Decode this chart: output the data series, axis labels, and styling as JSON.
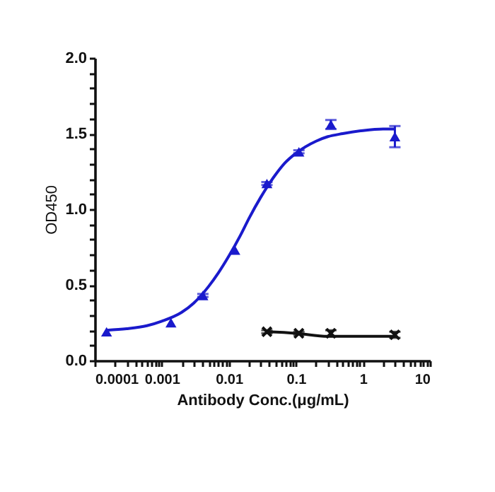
{
  "chart_data": {
    "type": "scatter",
    "xlabel": "Antibody Conc.(μg/mL)",
    "ylabel": "OD450",
    "log": "x",
    "grid": false,
    "xlim": [
      0.0001,
      10
    ],
    "ylim": [
      0,
      2.0
    ],
    "xticks": [
      0.0001,
      0.001,
      0.01,
      0.1,
      1,
      10,
      {
        "value": 0.0002,
        "label": null
      },
      {
        "value": 0.0003,
        "label": null
      },
      {
        "value": 0.0004,
        "label": null
      },
      {
        "value": 0.0005,
        "label": null
      },
      {
        "value": 0.0006,
        "label": null
      },
      {
        "value": 0.0007,
        "label": null
      },
      {
        "value": 0.0008,
        "label": null
      },
      {
        "value": 0.0009,
        "label": null
      },
      {
        "value": 0.002,
        "label": null
      },
      {
        "value": 0.003,
        "label": null
      },
      {
        "value": 0.004,
        "label": null
      },
      {
        "value": 0.005,
        "label": null
      },
      {
        "value": 0.006,
        "label": null
      },
      {
        "value": 0.007,
        "label": null
      },
      {
        "value": 0.008,
        "label": null
      },
      {
        "value": 0.009,
        "label": null
      },
      {
        "value": 0.02,
        "label": null
      },
      {
        "value": 0.03,
        "label": null
      },
      {
        "value": 0.04,
        "label": null
      },
      {
        "value": 0.05,
        "label": null
      },
      {
        "value": 0.06,
        "label": null
      },
      {
        "value": 0.07,
        "label": null
      },
      {
        "value": 0.08,
        "label": null
      },
      {
        "value": 0.09,
        "label": null
      },
      {
        "value": 0.2,
        "label": null
      },
      {
        "value": 0.3,
        "label": null
      },
      {
        "value": 0.4,
        "label": null
      },
      {
        "value": 0.5,
        "label": null
      },
      {
        "value": 0.6,
        "label": null
      },
      {
        "value": 0.7,
        "label": null
      },
      {
        "value": 0.8,
        "label": null
      },
      {
        "value": 0.9,
        "label": null
      },
      {
        "value": 2,
        "label": null
      },
      {
        "value": 3,
        "label": null
      },
      {
        "value": 4,
        "label": null
      },
      {
        "value": 5,
        "label": null
      },
      {
        "value": 6,
        "label": null
      },
      {
        "value": 7,
        "label": null
      },
      {
        "value": 8,
        "label": null
      },
      {
        "value": 9,
        "label": null
      }
    ],
    "yticks": [
      {
        "value": 0,
        "label": "0.0"
      },
      {
        "value": 0.5,
        "label": "0.5"
      },
      {
        "value": 1.0,
        "label": "1.0"
      },
      {
        "value": 1.5,
        "label": "1.5"
      },
      {
        "value": 2.0,
        "label": "2.0"
      },
      {
        "value": 0.1,
        "label": null
      },
      {
        "value": 0.2,
        "label": null
      },
      {
        "value": 0.3,
        "label": null
      },
      {
        "value": 0.4,
        "label": null
      },
      {
        "value": 0.6,
        "label": null
      },
      {
        "value": 0.7,
        "label": null
      },
      {
        "value": 0.8,
        "label": null
      },
      {
        "value": 0.9,
        "label": null
      },
      {
        "value": 1.1,
        "label": null
      },
      {
        "value": 1.2,
        "label": null
      },
      {
        "value": 1.3,
        "label": null
      },
      {
        "value": 1.4,
        "label": null
      },
      {
        "value": 1.6,
        "label": null
      },
      {
        "value": 1.7,
        "label": null
      },
      {
        "value": 1.8,
        "label": null
      },
      {
        "value": 1.9,
        "label": null
      }
    ],
    "series": [
      {
        "marker": "triangle",
        "color": "#1a1acc",
        "x": [
          0.00015,
          0.00137,
          0.0041,
          0.0123,
          0.037,
          0.111,
          0.333,
          3.0
        ],
        "values": [
          0.19,
          0.25,
          0.43,
          0.73,
          1.17,
          1.38,
          1.56,
          1.48
        ],
        "errors": [
          null,
          null,
          0.01,
          null,
          0.01,
          0.01,
          0.03,
          0.07
        ]
      },
      {
        "type": "line",
        "marker": "none",
        "line_style": "solid",
        "color": "#1a1acc",
        "x": [
          0.00015,
          0.0003,
          0.0006,
          0.001,
          0.002,
          0.003,
          0.005,
          0.007,
          0.01,
          0.015,
          0.02,
          0.03,
          0.05,
          0.07,
          0.1,
          0.2,
          0.3,
          0.5,
          1,
          2,
          3
        ],
        "values": [
          0.2,
          0.21,
          0.23,
          0.26,
          0.32,
          0.38,
          0.49,
          0.58,
          0.69,
          0.83,
          0.94,
          1.08,
          1.23,
          1.31,
          1.37,
          1.45,
          1.48,
          1.5,
          1.52,
          1.53,
          1.53
        ]
      },
      {
        "marker": "cross",
        "color": "#111111",
        "x": [
          0.037,
          0.111,
          0.333,
          3.0
        ],
        "values": [
          0.19,
          0.18,
          0.18,
          0.17
        ],
        "errors": [
          0.01,
          0.01,
          0.02,
          0.02
        ]
      },
      {
        "type": "line",
        "marker": "none",
        "line_style": "solid",
        "color": "#111111",
        "x": [
          0.037,
          0.1,
          0.3,
          1,
          3
        ],
        "values": [
          0.19,
          0.18,
          0.16,
          0.16,
          0.16
        ]
      }
    ]
  }
}
